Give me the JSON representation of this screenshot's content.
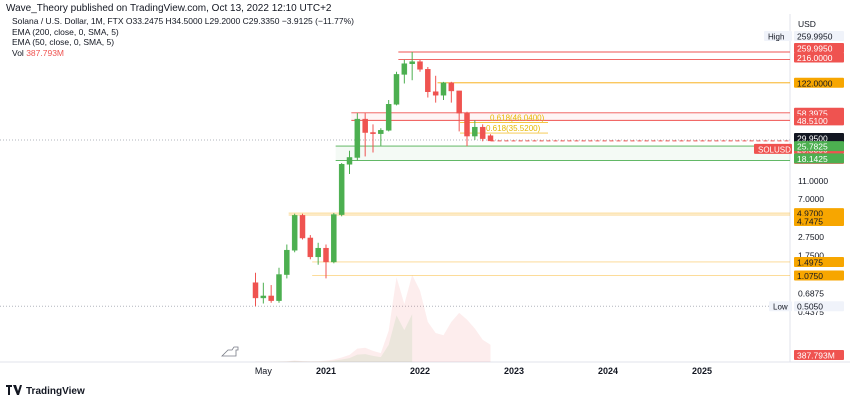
{
  "header": {
    "text": "Wave_Theory published on TradingView.com, Oct 13, 2022 12:10 UTC+2"
  },
  "legend": {
    "symbol_line": "Solana / U.S. Dollar, 1M, FTX",
    "ohlc": "O33.2475  H34.5000  L29.2000  C29.3350  −3.9125 (−11.77%)",
    "ema200": "EMA (200, close, 0, SMA, 5)",
    "ema50": "EMA (50, close, 0, SMA, 5)",
    "vol_label": "Vol",
    "vol_value": "387.793M"
  },
  "footer": {
    "logo_text": "TradingView"
  },
  "colors": {
    "up": "#26a69a",
    "up_body": "#4caf50",
    "down": "#ef5350",
    "orange": "#f7a600",
    "ref_line_green": "#4caf50"
  },
  "chart_data": {
    "type": "candlestick",
    "y_scale": "log",
    "currency_label": "USD",
    "x_ticks": [
      "May",
      "2021",
      "2022",
      "2023",
      "2024",
      "2025"
    ],
    "y_ticks": [
      "11.0000",
      "7.0000",
      "2.7500",
      "1.7500",
      "0.6875",
      "0.4375"
    ],
    "price_tags": [
      {
        "label": "High",
        "value": "259.9950",
        "style": "plain"
      },
      {
        "value": "259.9950",
        "style": "red"
      },
      {
        "value": "216.0000",
        "style": "red"
      },
      {
        "value": "122.0000",
        "style": "orange"
      },
      {
        "value": "58.3975",
        "style": "red"
      },
      {
        "value": "48.5100",
        "style": "red"
      },
      {
        "value": "29.9500",
        "style": "black"
      },
      {
        "label": "SOLUSD",
        "value": "29.3350",
        "style": "red"
      },
      {
        "value": "18d 14h",
        "style": "red"
      },
      {
        "value": "25.7825",
        "style": "green"
      },
      {
        "value": "18.1425",
        "style": "green"
      },
      {
        "value": "4.9700",
        "style": "orange"
      },
      {
        "value": "4.7475",
        "style": "orange"
      },
      {
        "value": "1.4975",
        "style": "orange"
      },
      {
        "value": "1.0750",
        "style": "orange"
      },
      {
        "label": "Low",
        "value": "0.5050",
        "style": "plain"
      },
      {
        "value": "387.793M",
        "style": "red"
      }
    ],
    "fib_labels": [
      "0.618(46.0400)",
      "0.618(35.5200)"
    ],
    "candles": [
      {
        "t": "2020-04",
        "o": 0.9,
        "h": 1.15,
        "l": 0.505,
        "c": 0.62
      },
      {
        "t": "2020-05",
        "o": 0.62,
        "h": 0.9,
        "l": 0.54,
        "c": 0.65
      },
      {
        "t": "2020-06",
        "o": 0.65,
        "h": 0.85,
        "l": 0.55,
        "c": 0.58
      },
      {
        "t": "2020-07",
        "o": 0.58,
        "h": 1.3,
        "l": 0.55,
        "c": 1.1
      },
      {
        "t": "2020-08",
        "o": 1.1,
        "h": 2.3,
        "l": 1.0,
        "c": 2.0
      },
      {
        "t": "2020-09",
        "o": 2.0,
        "h": 4.9,
        "l": 1.9,
        "c": 4.7
      },
      {
        "t": "2020-10",
        "o": 4.7,
        "h": 4.9,
        "l": 2.6,
        "c": 2.7
      },
      {
        "t": "2020-11",
        "o": 2.7,
        "h": 2.9,
        "l": 1.6,
        "c": 1.7
      },
      {
        "t": "2020-12",
        "o": 1.7,
        "h": 2.4,
        "l": 1.4,
        "c": 2.1
      },
      {
        "t": "2021-01",
        "o": 2.1,
        "h": 2.3,
        "l": 1.0,
        "c": 1.5
      },
      {
        "t": "2021-02",
        "o": 1.5,
        "h": 5.0,
        "l": 1.45,
        "c": 4.8
      },
      {
        "t": "2021-03",
        "o": 4.8,
        "h": 17.0,
        "l": 4.6,
        "c": 16.5
      },
      {
        "t": "2021-04",
        "o": 16.5,
        "h": 23.0,
        "l": 13.0,
        "c": 19.5
      },
      {
        "t": "2021-05",
        "o": 19.5,
        "h": 58.0,
        "l": 18.0,
        "c": 50.0
      },
      {
        "t": "2021-06",
        "o": 50.0,
        "h": 58.0,
        "l": 20.0,
        "c": 36.0
      },
      {
        "t": "2021-07",
        "o": 36.0,
        "h": 44.0,
        "l": 22.0,
        "c": 35.0
      },
      {
        "t": "2021-08",
        "o": 35.0,
        "h": 40.0,
        "l": 26.0,
        "c": 38.0
      },
      {
        "t": "2021-09",
        "o": 38.0,
        "h": 80.0,
        "l": 37.0,
        "c": 72.0
      },
      {
        "t": "2021-10",
        "o": 72.0,
        "h": 160.0,
        "l": 70.0,
        "c": 150.0
      },
      {
        "t": "2021-11",
        "o": 150.0,
        "h": 216.0,
        "l": 120.0,
        "c": 195.0
      },
      {
        "t": "2021-12",
        "o": 195.0,
        "h": 259.995,
        "l": 130.0,
        "c": 205.0
      },
      {
        "t": "2022-01",
        "o": 205.0,
        "h": 215.0,
        "l": 160.0,
        "c": 170.0
      },
      {
        "t": "2022-02",
        "o": 170.0,
        "h": 180.0,
        "l": 85.0,
        "c": 98.0
      },
      {
        "t": "2022-03",
        "o": 98.0,
        "h": 145.0,
        "l": 75.0,
        "c": 90.0
      },
      {
        "t": "2022-04",
        "o": 90.0,
        "h": 125.0,
        "l": 80.0,
        "c": 122.0
      },
      {
        "t": "2022-05",
        "o": 122.0,
        "h": 125.0,
        "l": 75.0,
        "c": 100.0
      },
      {
        "t": "2022-06",
        "o": 100.0,
        "h": 100.0,
        "l": 37.0,
        "c": 58.0
      },
      {
        "t": "2022-07",
        "o": 58.0,
        "h": 60.0,
        "l": 25.78,
        "c": 33.0
      },
      {
        "t": "2022-08",
        "o": 33.0,
        "h": 48.51,
        "l": 30.0,
        "c": 41.0
      },
      {
        "t": "2022-09",
        "o": 41.0,
        "h": 44.0,
        "l": 29.0,
        "c": 31.0
      },
      {
        "t": "2022-10",
        "o": 33.2475,
        "h": 34.5,
        "l": 29.2,
        "c": 29.335
      }
    ],
    "volume": [
      {
        "t": "2020-04",
        "v": 5
      },
      {
        "t": "2020-05",
        "v": 6
      },
      {
        "t": "2020-06",
        "v": 5
      },
      {
        "t": "2020-07",
        "v": 8
      },
      {
        "t": "2020-08",
        "v": 15
      },
      {
        "t": "2020-09",
        "v": 35
      },
      {
        "t": "2020-10",
        "v": 20
      },
      {
        "t": "2020-11",
        "v": 15
      },
      {
        "t": "2020-12",
        "v": 18
      },
      {
        "t": "2021-01",
        "v": 30
      },
      {
        "t": "2021-02",
        "v": 55
      },
      {
        "t": "2021-03",
        "v": 100
      },
      {
        "t": "2021-04",
        "v": 160
      },
      {
        "t": "2021-05",
        "v": 300
      },
      {
        "t": "2021-06",
        "v": 320
      },
      {
        "t": "2021-07",
        "v": 250
      },
      {
        "t": "2021-08",
        "v": 200
      },
      {
        "t": "2021-09",
        "v": 700
      },
      {
        "t": "2021-10",
        "v": 1900
      },
      {
        "t": "2021-11",
        "v": 1300
      },
      {
        "t": "2021-12",
        "v": 1950
      },
      {
        "t": "2022-01",
        "v": 1600
      },
      {
        "t": "2022-02",
        "v": 900
      },
      {
        "t": "2022-03",
        "v": 650
      },
      {
        "t": "2022-04",
        "v": 600
      },
      {
        "t": "2022-05",
        "v": 900
      },
      {
        "t": "2022-06",
        "v": 1100
      },
      {
        "t": "2022-07",
        "v": 950
      },
      {
        "t": "2022-08",
        "v": 750
      },
      {
        "t": "2022-09",
        "v": 500
      },
      {
        "t": "2022-10",
        "v": 387.793
      }
    ],
    "levels": [
      {
        "value": 259.995,
        "kind": "resistance",
        "start": "2021-11"
      },
      {
        "value": 216.0,
        "kind": "resistance",
        "start": "2021-11"
      },
      {
        "value": 122.0,
        "kind": "orange",
        "start": "2022-04"
      },
      {
        "value": 58.3975,
        "kind": "resistance",
        "start": "2021-05"
      },
      {
        "value": 48.51,
        "kind": "resistance",
        "start": "2021-05"
      },
      {
        "value": 25.7825,
        "kind": "support",
        "start": "2021-03"
      },
      {
        "value": 18.1425,
        "kind": "support",
        "start": "2021-03"
      },
      {
        "value": 4.97,
        "kind": "orange",
        "start": "2020-09"
      },
      {
        "value": 4.7475,
        "kind": "orange",
        "start": "2020-09"
      },
      {
        "value": 1.4975,
        "kind": "orange",
        "start": "2020-12"
      },
      {
        "value": 1.075,
        "kind": "orange",
        "start": "2020-12"
      }
    ]
  }
}
